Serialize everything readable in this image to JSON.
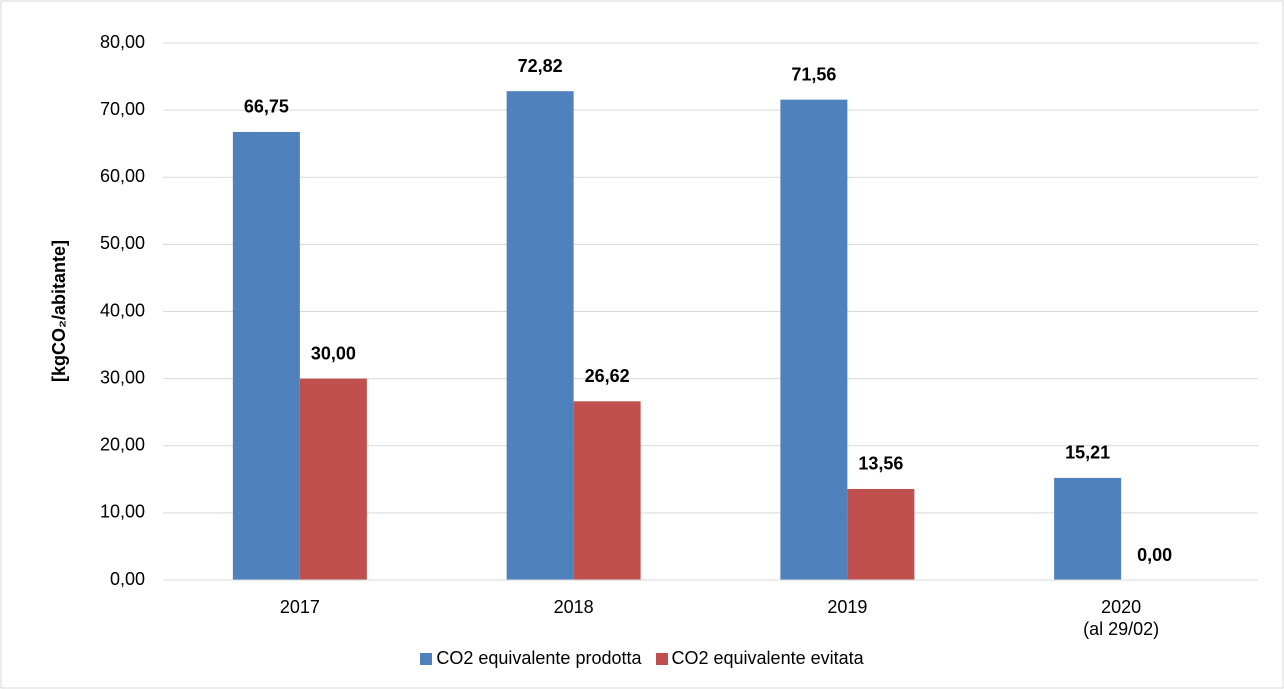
{
  "chart_data": {
    "type": "bar",
    "categories": [
      "2017",
      "2018",
      "2019",
      "2020\n(al 29/02)"
    ],
    "series": [
      {
        "name": "CO2 equivalente prodotta",
        "color": "#4f81bd",
        "values": [
          66.75,
          72.82,
          71.56,
          15.21
        ],
        "value_labels": [
          "66,75",
          "72,82",
          "71,56",
          "15,21"
        ]
      },
      {
        "name": "CO2 equivalente evitata",
        "color": "#c0504d",
        "values": [
          30.0,
          26.62,
          13.56,
          0.0
        ],
        "value_labels": [
          "30,00",
          "26,62",
          "13,56",
          "0,00"
        ]
      }
    ],
    "ylabel": "[kgCO₂/abitante]",
    "ylim": [
      0,
      80
    ],
    "yticks": [
      {
        "value": 0,
        "label": "0,00"
      },
      {
        "value": 10,
        "label": "10,00"
      },
      {
        "value": 20,
        "label": "20,00"
      },
      {
        "value": 30,
        "label": "30,00"
      },
      {
        "value": 40,
        "label": "40,00"
      },
      {
        "value": 50,
        "label": "50,00"
      },
      {
        "value": 60,
        "label": "60,00"
      },
      {
        "value": 70,
        "label": "70,00"
      },
      {
        "value": 80,
        "label": "80,00"
      }
    ],
    "grid": true,
    "legend": "bottom"
  }
}
